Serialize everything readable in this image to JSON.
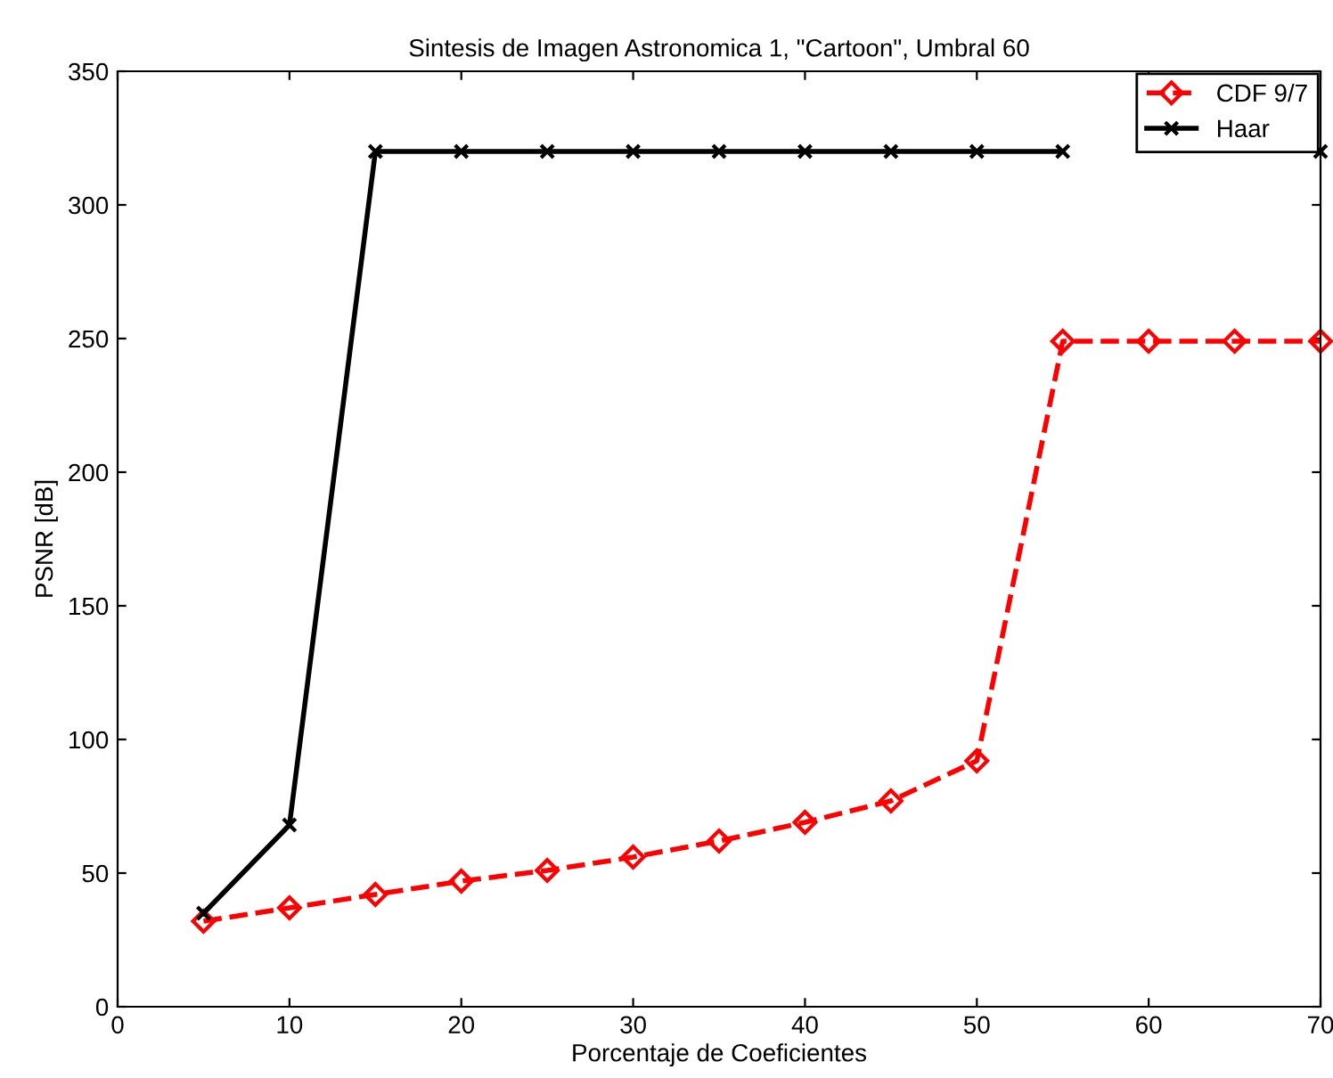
{
  "chart_data": {
    "type": "line",
    "title": "Sintesis de Imagen Astronomica 1, \"Cartoon\", Umbral 60",
    "xlabel": "Porcentaje de Coeficientes",
    "ylabel": "PSNR [dB]",
    "x": [
      5,
      10,
      15,
      20,
      25,
      30,
      35,
      40,
      45,
      50,
      55,
      60,
      65,
      70
    ],
    "series": [
      {
        "name": "CDF 9/7",
        "color": "#ff0000",
        "marker": "diamond",
        "line_style": "dashed",
        "values": [
          32,
          37,
          42,
          47,
          51,
          56,
          62,
          69,
          77,
          92,
          249,
          249,
          249,
          249
        ]
      },
      {
        "name": "Haar",
        "color": "#000000",
        "marker": "cross",
        "line_style": "solid",
        "values": [
          35,
          68,
          320,
          320,
          320,
          320,
          320,
          320,
          320,
          320,
          320,
          null,
          null,
          320
        ]
      }
    ],
    "xlim": [
      0,
      70
    ],
    "ylim": [
      0,
      350
    ],
    "xticks": [
      0,
      10,
      20,
      30,
      40,
      50,
      60,
      70
    ],
    "yticks": [
      0,
      50,
      100,
      150,
      200,
      250,
      300,
      350
    ],
    "grid": false,
    "legend": "top right"
  }
}
